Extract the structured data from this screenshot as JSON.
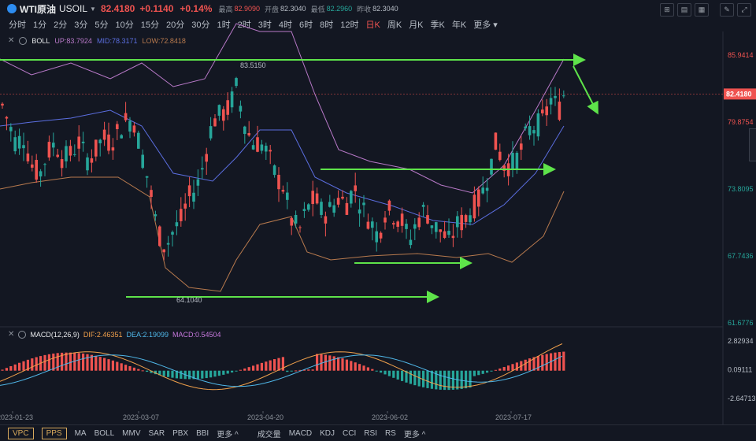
{
  "header": {
    "symbol_name": "WTI原油",
    "symbol_code": "USOIL",
    "price": "82.4180",
    "change": "+0.1140",
    "change_pct": "+0.14%",
    "high_label": "最高",
    "high": "82.9090",
    "open_label": "开盘",
    "open": "82.3040",
    "low_label": "最低",
    "low": "82.2960",
    "prev_label": "昨收",
    "prev": "82.3040"
  },
  "timeframes": [
    "分时",
    "1分",
    "2分",
    "3分",
    "5分",
    "10分",
    "15分",
    "20分",
    "30分",
    "1时",
    "2时",
    "3时",
    "4时",
    "6时",
    "8时",
    "12时",
    "日K",
    "周K",
    "月K",
    "季K",
    "年K",
    "更多"
  ],
  "active_timeframe": "日K",
  "boll": {
    "name": "BOLL",
    "up": "UP:83.7924",
    "mid": "MID:78.3171",
    "low": "LOW:72.8418"
  },
  "macd": {
    "name": "MACD(12,26,9)",
    "dif": "DIF:2.46351",
    "dea": "DEA:2.19099",
    "macd": "MACD:0.54504"
  },
  "price_axis": [
    "85.9414",
    "79.8754",
    "73.8095",
    "67.7436",
    "61.6776"
  ],
  "current_price_tag": "82.4180",
  "macd_axis": [
    "2.82934",
    "0.09111",
    "-2.64713"
  ],
  "date_axis": [
    "2023-01-23",
    "2023-03-07",
    "2023-04-20",
    "2023-06-02",
    "2023-07-17"
  ],
  "annotations": {
    "high_mark": "83.5150",
    "low_mark": "64.1040"
  },
  "bottom_toolbar": {
    "buttons": [
      "VPC",
      "PPS"
    ],
    "main_indicators": [
      "MA",
      "BOLL",
      "MMV",
      "SAR",
      "PBX",
      "BBI",
      "更多"
    ],
    "sub_indicators": [
      "成交量",
      "MACD",
      "KDJ",
      "CCI",
      "RSI",
      "RS",
      "更多"
    ]
  },
  "colors": {
    "up": "#ef5350",
    "down": "#26a69a",
    "boll_up": "#b879c8",
    "boll_mid": "#5b6ee0",
    "boll_low": "#b87a4e",
    "arrow": "#5ee34a",
    "dif": "#f0a04b",
    "dea": "#4fb7e8"
  },
  "chart_data": {
    "type": "candlestick",
    "ylim": [
      61.6776,
      85.9414
    ],
    "series": [
      {
        "name": "BOLL UP",
        "values": [
          83.7924
        ]
      },
      {
        "name": "BOLL MID",
        "values": [
          78.3171
        ]
      },
      {
        "name": "BOLL LOW",
        "values": [
          72.8418
        ]
      }
    ],
    "macd": {
      "dif": 2.46351,
      "dea": 2.19099,
      "macd": 0.54504,
      "ylim": [
        -2.64713,
        2.82934
      ]
    }
  }
}
